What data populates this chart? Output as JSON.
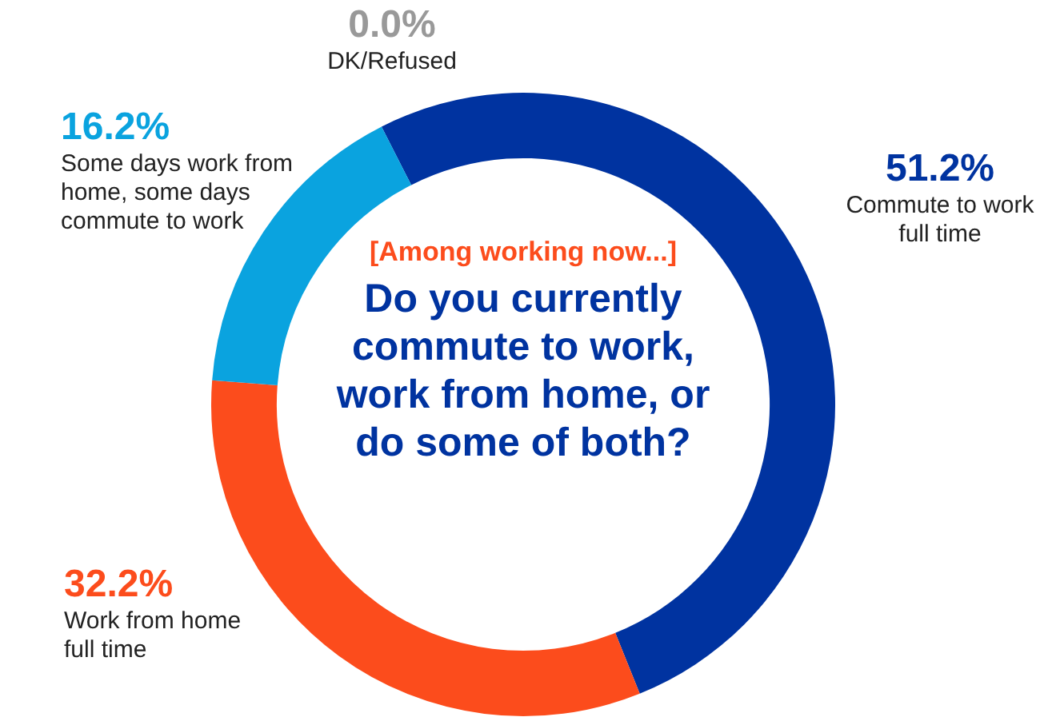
{
  "chart_data": {
    "type": "donut",
    "subtitle": "[Among working now...]",
    "title": "Do you currently commute to work, work from home, or do some of both?",
    "categories": [
      "Commute to work full time",
      "Work from home full time",
      "Some days work from home, some days commute to work",
      "DK/Refused"
    ],
    "values": [
      51.2,
      32.2,
      16.2,
      0.0
    ],
    "colors": [
      "#0033a0",
      "#fc4c1c",
      "#0aa3df",
      "#999999"
    ],
    "value_labels": [
      "51.2%",
      "32.2%",
      "16.2%",
      "0.0%"
    ],
    "legend": false
  }
}
